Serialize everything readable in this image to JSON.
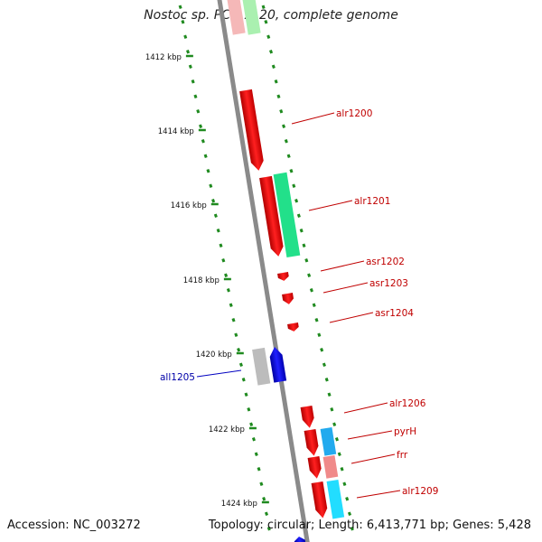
{
  "header": {
    "title": "Nostoc sp. PCC 7120, complete genome"
  },
  "footer": {
    "accession": "Accession: NC_003272",
    "summary": "Topology: circular; Length: 6,413,771 bp; Genes: 5,428"
  },
  "scale": {
    "ticks": [
      "1412 kbp",
      "1414 kbp",
      "1416 kbp",
      "1418 kbp",
      "1420 kbp",
      "1422 kbp",
      "1424 kbp"
    ]
  },
  "genes": [
    {
      "name": "alr1200",
      "strand": "+",
      "color": "#ee0000"
    },
    {
      "name": "alr1201",
      "strand": "+",
      "color": "#ee0000"
    },
    {
      "name": "asr1202",
      "strand": "+",
      "color": "#ee0000"
    },
    {
      "name": "asr1203",
      "strand": "+",
      "color": "#ee0000"
    },
    {
      "name": "asr1204",
      "strand": "+",
      "color": "#ee0000"
    },
    {
      "name": "all1205",
      "strand": "-",
      "color": "#0000ee"
    },
    {
      "name": "alr1206",
      "strand": "+",
      "color": "#ee0000"
    },
    {
      "name": "pyrH",
      "strand": "+",
      "color": "#ee0000"
    },
    {
      "name": "frr",
      "strand": "+",
      "color": "#ee0000"
    },
    {
      "name": "alr1209",
      "strand": "+",
      "color": "#ee0000"
    }
  ],
  "colors": {
    "backbone": "#8a8a8a",
    "tick": "#1f8a1f",
    "cog_green": "#22e08a",
    "cog_lightgreen": "#aaf0b0",
    "cog_cyan": "#22ddff",
    "cog_azure": "#22aaee",
    "cog_pink": "#f08a8a",
    "cog_grey": "#bcbcbc",
    "cog_lightred": "#f5b8b8"
  }
}
